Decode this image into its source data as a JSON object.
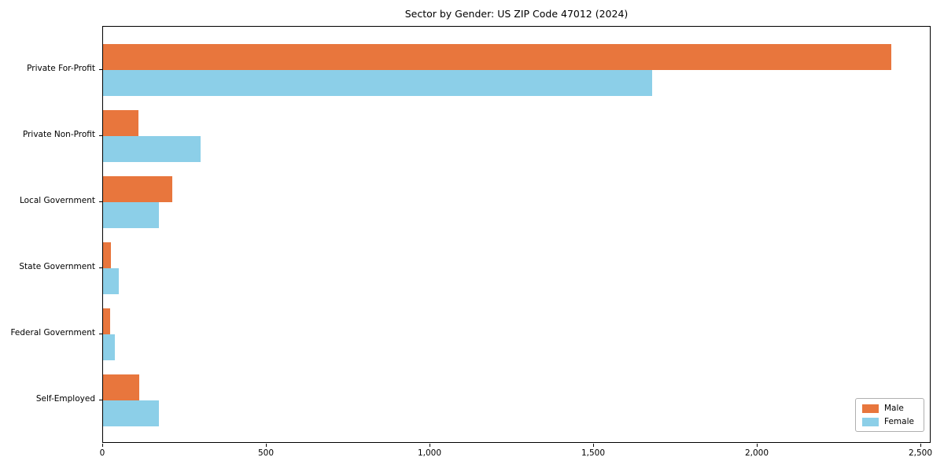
{
  "title": "Sector by Gender: US ZIP Code 47012 (2024)",
  "colors": {
    "male": "#e8763d",
    "female": "#8ccfe8",
    "spine": "#000000",
    "text": "#000000",
    "legend_border": "#b0b0b0",
    "background": "#ffffff"
  },
  "chart_data": {
    "type": "bar",
    "orientation": "horizontal",
    "title": "Sector by Gender: US ZIP Code 47012 (2024)",
    "categories": [
      "Private For-Profit",
      "Private Non-Profit",
      "Local Government",
      "State Government",
      "Federal Government",
      "Self-Employed"
    ],
    "series": [
      {
        "name": "Male",
        "color": "#e8763d",
        "values": [
          2408,
          108,
          212,
          24,
          22,
          110
        ]
      },
      {
        "name": "Female",
        "color": "#8ccfe8",
        "values": [
          1678,
          298,
          171,
          48,
          36,
          171
        ]
      }
    ],
    "xlabel": "",
    "ylabel": "",
    "x_ticks": [
      0,
      500,
      1000,
      1500,
      2000,
      2500
    ],
    "x_tick_labels": [
      "0",
      "500",
      "1,000",
      "1,500",
      "2,000",
      "2,500"
    ],
    "xlim": [
      0,
      2531
    ],
    "grid": false,
    "legend_position": "lower right"
  },
  "legend": {
    "items": [
      {
        "label": "Male"
      },
      {
        "label": "Female"
      }
    ]
  }
}
